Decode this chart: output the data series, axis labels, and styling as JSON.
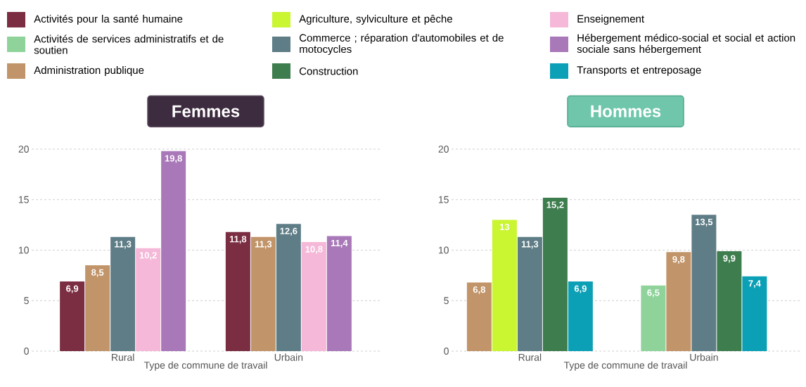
{
  "chart_data": [
    {
      "type": "bar",
      "title": "Femmes",
      "categories": [
        "Rural",
        "Urbain"
      ],
      "xlabel": "Type de commune de travail",
      "ylim": [
        0,
        20
      ],
      "yticks": [
        0,
        5,
        10,
        15,
        20
      ],
      "grid": "y",
      "legend": "top",
      "series": [
        {
          "name": "Activités pour la santé humaine",
          "color": "#7b2d42",
          "values": [
            6.9,
            11.8
          ],
          "value_labels": [
            "6,9",
            "11,8"
          ]
        },
        {
          "name": "Activités de services administratifs et de soutien",
          "color": "#8fd39b",
          "values": [
            null,
            null
          ],
          "value_labels": [
            null,
            null
          ]
        },
        {
          "name": "Administration publique",
          "color": "#c19469",
          "values": [
            8.5,
            11.3
          ],
          "value_labels": [
            "8,5",
            "11,3"
          ]
        },
        {
          "name": "Agriculture, sylviculture et pêche",
          "color": "#c9f531",
          "values": [
            null,
            null
          ],
          "value_labels": [
            null,
            null
          ]
        },
        {
          "name": "Commerce ; réparation d'automobiles et de motocycles",
          "color": "#5e7d86",
          "values": [
            11.3,
            12.6
          ],
          "value_labels": [
            "11,3",
            "12,6"
          ]
        },
        {
          "name": "Construction",
          "color": "#3e7d4d",
          "values": [
            null,
            null
          ],
          "value_labels": [
            null,
            null
          ]
        },
        {
          "name": "Enseignement",
          "color": "#f5b8d8",
          "values": [
            10.2,
            10.8
          ],
          "value_labels": [
            "10,2",
            "10,8"
          ]
        },
        {
          "name": "Hébergement médico-social et social et action sociale sans hébergement",
          "color": "#a878b8",
          "values": [
            19.8,
            11.4
          ],
          "value_labels": [
            "19,8",
            "11,4"
          ]
        },
        {
          "name": "Transports et entreposage",
          "color": "#0ca0b6",
          "values": [
            null,
            null
          ],
          "value_labels": [
            null,
            null
          ]
        }
      ]
    },
    {
      "type": "bar",
      "title": "Hommes",
      "categories": [
        "Rural",
        "Urbain"
      ],
      "xlabel": "Type de commune de travail",
      "ylim": [
        0,
        20
      ],
      "yticks": [
        0,
        5,
        10,
        15,
        20
      ],
      "grid": "y",
      "series": [
        {
          "color": "#8fd39b",
          "values": [
            null,
            6.5
          ],
          "value_labels": [
            null,
            "6,5"
          ]
        },
        {
          "color": "#c19469",
          "values": [
            6.8,
            9.8
          ],
          "value_labels": [
            "6,8",
            "9,8"
          ]
        },
        {
          "color": "#c9f531",
          "values": [
            13,
            null
          ],
          "value_labels": [
            "13",
            null
          ]
        },
        {
          "color": "#5e7d86",
          "values": [
            11.3,
            13.5
          ],
          "value_labels": [
            "11,3",
            "13,5"
          ]
        },
        {
          "color": "#3e7d4d",
          "values": [
            15.2,
            9.9
          ],
          "value_labels": [
            "15,2",
            "9,9"
          ]
        },
        {
          "color": "#0ca0b6",
          "values": [
            6.9,
            7.4
          ],
          "value_labels": [
            "6,9",
            "7,4"
          ]
        }
      ]
    }
  ]
}
